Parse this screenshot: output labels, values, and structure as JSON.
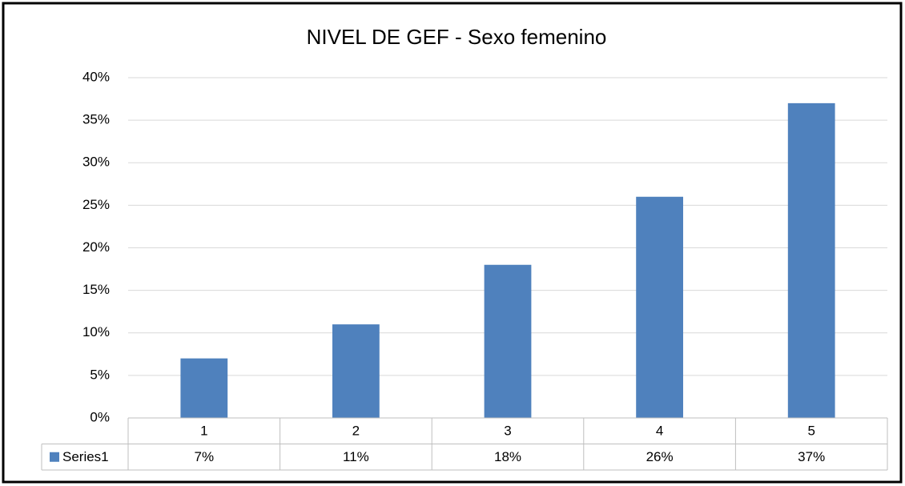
{
  "chart_data": {
    "type": "bar",
    "title": "NIVEL DE GEF - Sexo femenino",
    "categories": [
      "1",
      "2",
      "3",
      "4",
      "5"
    ],
    "series": [
      {
        "name": "Series1",
        "color": "#4f81bd",
        "values": [
          7,
          11,
          18,
          26,
          37
        ],
        "value_labels": [
          "7%",
          "11%",
          "18%",
          "26%",
          "37%"
        ]
      }
    ],
    "ylim": [
      0,
      40
    ],
    "yticks": [
      {
        "value": 0,
        "label": "0%"
      },
      {
        "value": 5,
        "label": "5%"
      },
      {
        "value": 10,
        "label": "10%"
      },
      {
        "value": 15,
        "label": "15%"
      },
      {
        "value": 20,
        "label": "20%"
      },
      {
        "value": 25,
        "label": "25%"
      },
      {
        "value": 30,
        "label": "30%"
      },
      {
        "value": 35,
        "label": "35%"
      },
      {
        "value": 40,
        "label": "40%"
      }
    ],
    "grid": true,
    "data_table": true
  }
}
